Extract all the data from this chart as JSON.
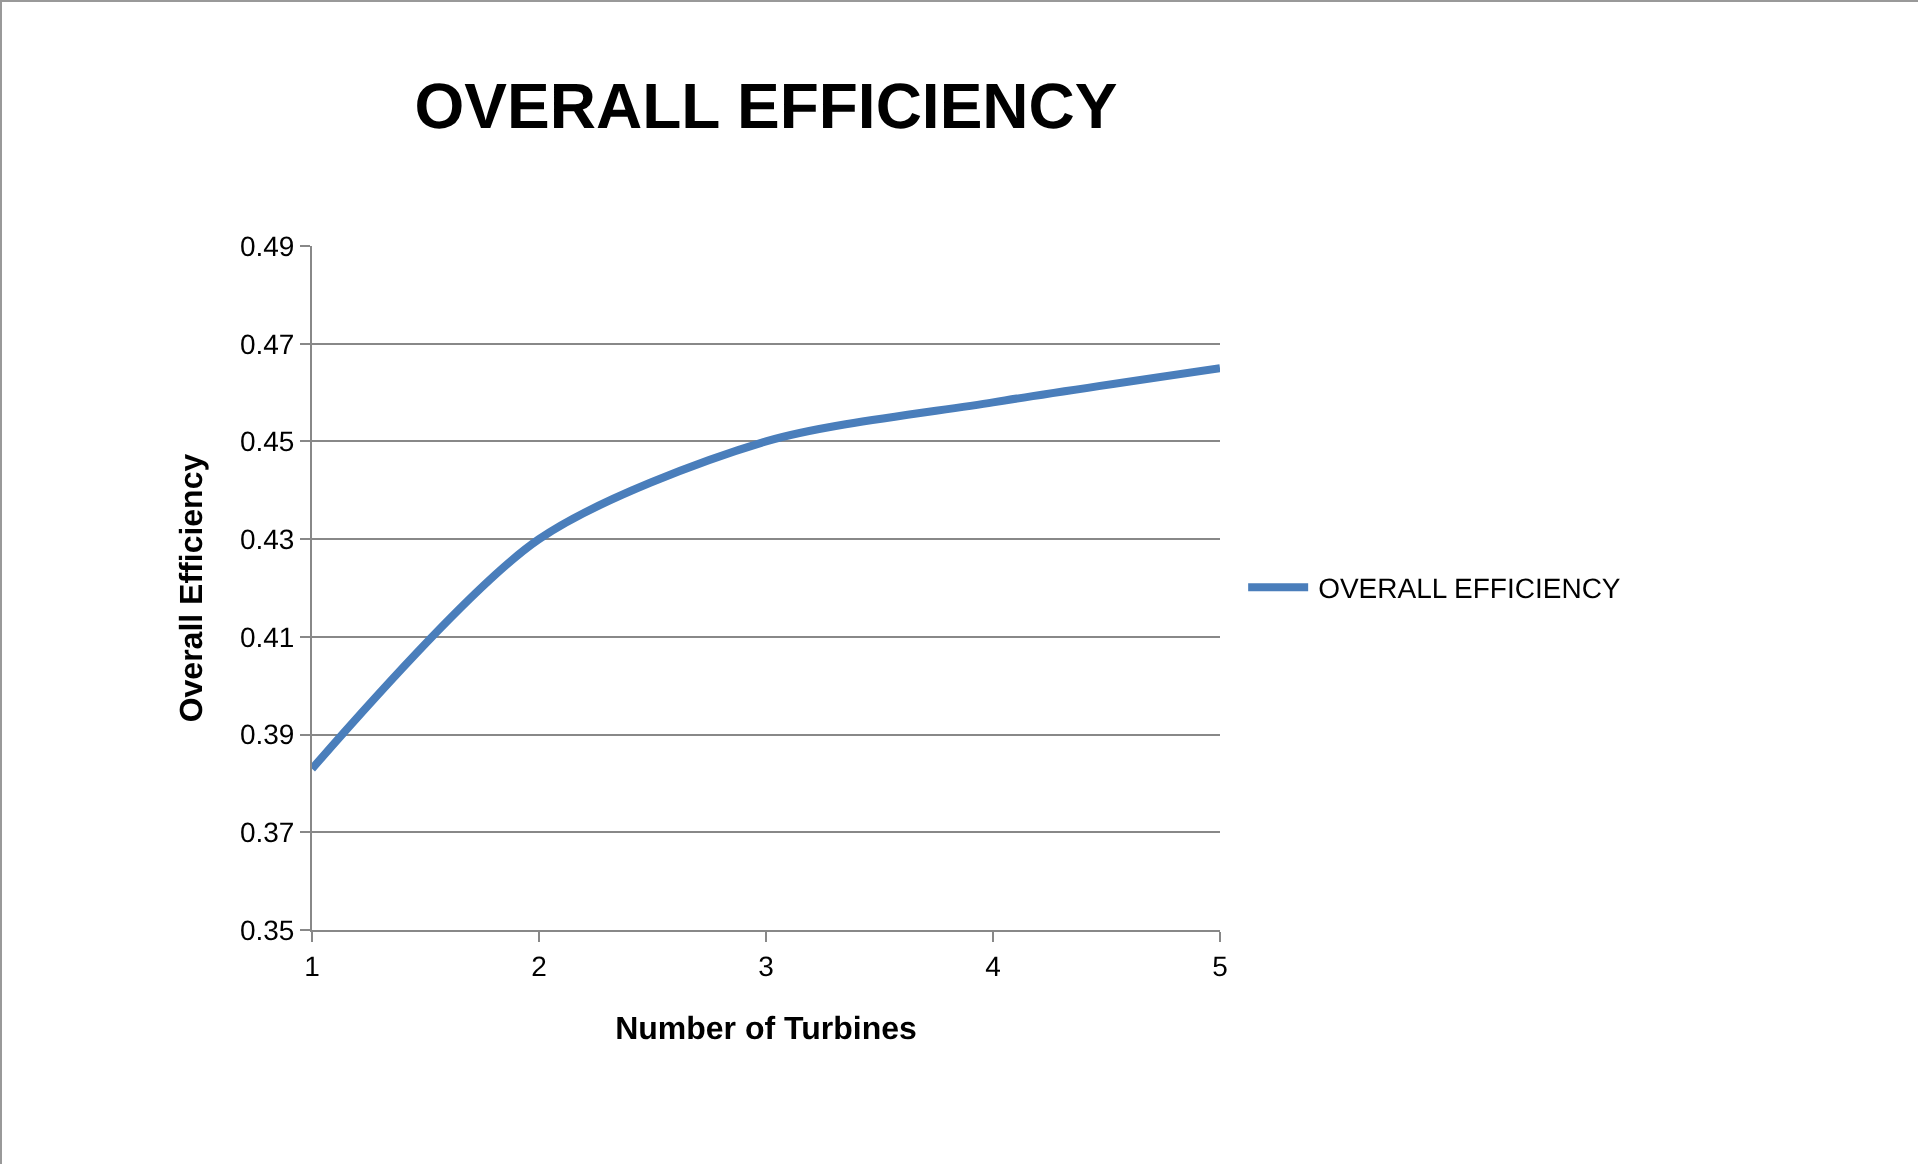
{
  "chart_data": {
    "type": "line",
    "title": "OVERALL EFFICIENCY",
    "xlabel": "Number of Turbines",
    "ylabel": "Overall Efficiency",
    "categories": [
      "1",
      "2",
      "3",
      "4",
      "5"
    ],
    "series": [
      {
        "name": "OVERALL EFFICIENCY",
        "color": "#4a7ebb",
        "values": [
          0.383,
          0.43,
          0.45,
          0.458,
          0.465
        ]
      }
    ],
    "ylim": [
      0.35,
      0.49
    ],
    "yticks": [
      0.35,
      0.37,
      0.39,
      0.41,
      0.43,
      0.45,
      0.47,
      0.49
    ],
    "grid": "y",
    "legend": "right",
    "marker": "none",
    "line_style": "solid"
  }
}
